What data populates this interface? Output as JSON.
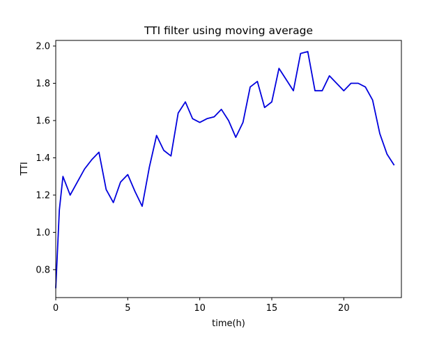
{
  "chart_data": {
    "type": "line",
    "title": "TTI filter using moving average",
    "xlabel": "time(h)",
    "ylabel": "TTI",
    "xlim": [
      0,
      24
    ],
    "ylim": [
      0.65,
      2.03
    ],
    "xticks": [
      0,
      5,
      10,
      15,
      20
    ],
    "xtick_labels": [
      "0",
      "5",
      "10",
      "15",
      "20"
    ],
    "yticks": [
      0.8,
      1.0,
      1.2,
      1.4,
      1.6,
      1.8,
      2.0
    ],
    "ytick_labels": [
      "0.8",
      "1.0",
      "1.2",
      "1.4",
      "1.6",
      "1.8",
      "2.0"
    ],
    "grid": false,
    "colors": {
      "line": "#0000dd",
      "axes": "#000000",
      "background": "#ffffff"
    },
    "series": [
      {
        "x": [
          0,
          0.25,
          0.5,
          1,
          1.5,
          2,
          2.5,
          3,
          3.5,
          4,
          4.5,
          5,
          5.5,
          6,
          6.5,
          7,
          7.5,
          8,
          8.5,
          9,
          9.5,
          10,
          10.5,
          11,
          11.5,
          12,
          12.5,
          13,
          13.5,
          14,
          14.5,
          15,
          15.5,
          16,
          16.5,
          17,
          17.5,
          18,
          18.5,
          19,
          19.5,
          20,
          20.5,
          21,
          21.5,
          22,
          22.5,
          23,
          23.5
        ],
        "values": [
          0.7,
          1.12,
          1.3,
          1.2,
          1.27,
          1.34,
          1.39,
          1.43,
          1.23,
          1.16,
          1.27,
          1.31,
          1.22,
          1.14,
          1.35,
          1.52,
          1.44,
          1.41,
          1.64,
          1.7,
          1.61,
          1.59,
          1.61,
          1.62,
          1.66,
          1.6,
          1.51,
          1.59,
          1.78,
          1.81,
          1.67,
          1.7,
          1.88,
          1.82,
          1.76,
          1.96,
          1.97,
          1.76,
          1.76,
          1.84,
          1.8,
          1.76,
          1.8,
          1.8,
          1.78,
          1.71,
          1.53,
          1.42,
          1.36
        ]
      }
    ]
  }
}
